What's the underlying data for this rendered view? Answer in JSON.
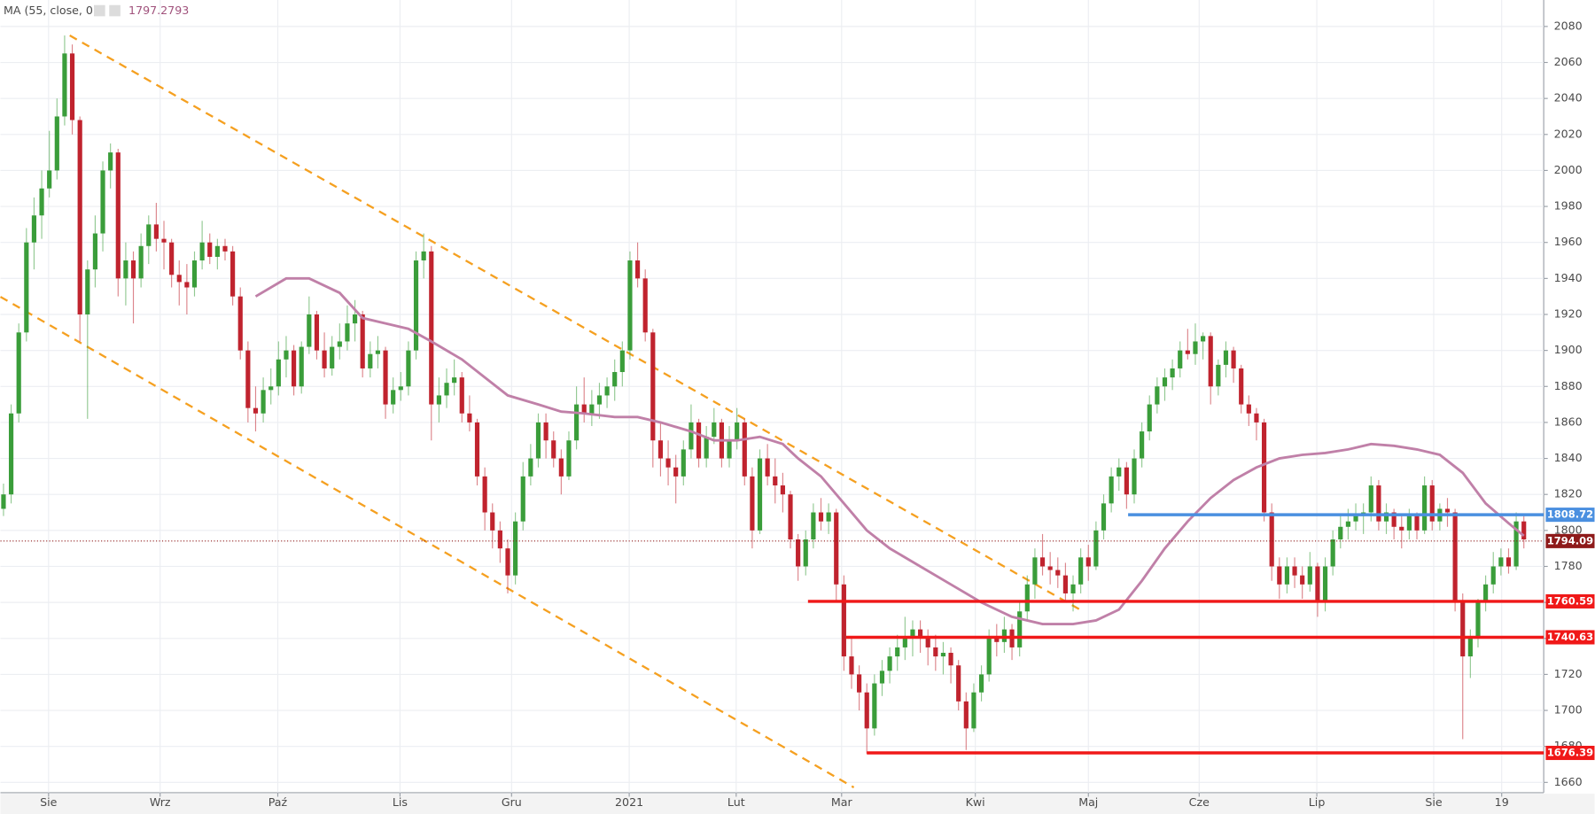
{
  "chart_data": {
    "type": "candlestick",
    "legend": {
      "name": "MA (55, close, 0)",
      "last_value": 1797.2793
    },
    "ylim": [
      1654.3,
      2094.7
    ],
    "yticks": [
      1660,
      1680,
      1700,
      1720,
      1740,
      1760,
      1780,
      1800,
      1820,
      1840,
      1860,
      1880,
      1900,
      1920,
      1940,
      1960,
      1980,
      2000,
      2020,
      2040,
      2060,
      2080
    ],
    "xlim": [
      -0.4,
      201.6
    ],
    "xticks": [
      {
        "value": 5.9,
        "label": "Sie"
      },
      {
        "value": 20.5,
        "label": "Wrz"
      },
      {
        "value": 35.9,
        "label": "Paź"
      },
      {
        "value": 51.9,
        "label": "Lis"
      },
      {
        "value": 66.5,
        "label": "Gru"
      },
      {
        "value": 81.9,
        "label": "2021"
      },
      {
        "value": 95.9,
        "label": "Lut"
      },
      {
        "value": 109.7,
        "label": "Mar"
      },
      {
        "value": 127.2,
        "label": "Kwi"
      },
      {
        "value": 142,
        "label": "Maj"
      },
      {
        "value": 156.5,
        "label": "Cze"
      },
      {
        "value": 171.9,
        "label": "Lip"
      },
      {
        "value": 187.2,
        "label": "Sie"
      },
      {
        "value": 196.1,
        "label": "19"
      }
    ],
    "grid": true,
    "up_color": "#3a9d3a",
    "down_color": "#c0232e",
    "candles": [
      [
        1812,
        1826,
        1808,
        1820
      ],
      [
        1820,
        1870,
        1815,
        1865
      ],
      [
        1865,
        1915,
        1860,
        1910
      ],
      [
        1910,
        1968,
        1905,
        1960
      ],
      [
        1960,
        1985,
        1945,
        1975
      ],
      [
        1975,
        2000,
        1962,
        1990
      ],
      [
        1990,
        2022,
        1985,
        2000
      ],
      [
        2000,
        2040,
        1995,
        2030
      ],
      [
        2030,
        2075,
        2025,
        2065
      ],
      [
        2065,
        2070,
        2020,
        2028
      ],
      [
        2028,
        2030,
        1905,
        1920
      ],
      [
        1920,
        1950,
        1862,
        1945
      ],
      [
        1945,
        1975,
        1935,
        1965
      ],
      [
        1965,
        2005,
        1955,
        2000
      ],
      [
        2000,
        2015,
        1990,
        2010
      ],
      [
        2010,
        2012,
        1930,
        1940
      ],
      [
        1940,
        1960,
        1925,
        1950
      ],
      [
        1950,
        1955,
        1915,
        1940
      ],
      [
        1940,
        1965,
        1935,
        1958
      ],
      [
        1958,
        1975,
        1948,
        1970
      ],
      [
        1970,
        1982,
        1955,
        1962
      ],
      [
        1962,
        1972,
        1945,
        1960
      ],
      [
        1960,
        1962,
        1935,
        1942
      ],
      [
        1942,
        1950,
        1925,
        1938
      ],
      [
        1938,
        1948,
        1920,
        1935
      ],
      [
        1935,
        1955,
        1930,
        1950
      ],
      [
        1950,
        1972,
        1945,
        1960
      ],
      [
        1960,
        1965,
        1948,
        1952
      ],
      [
        1952,
        1962,
        1945,
        1958
      ],
      [
        1958,
        1962,
        1950,
        1955
      ],
      [
        1955,
        1958,
        1925,
        1930
      ],
      [
        1930,
        1935,
        1895,
        1900
      ],
      [
        1900,
        1905,
        1860,
        1868
      ],
      [
        1868,
        1880,
        1855,
        1865
      ],
      [
        1865,
        1885,
        1860,
        1878
      ],
      [
        1878,
        1890,
        1870,
        1880
      ],
      [
        1880,
        1905,
        1875,
        1895
      ],
      [
        1895,
        1908,
        1885,
        1900
      ],
      [
        1900,
        1903,
        1875,
        1880
      ],
      [
        1880,
        1905,
        1876,
        1902
      ],
      [
        1902,
        1930,
        1898,
        1920
      ],
      [
        1920,
        1922,
        1895,
        1900
      ],
      [
        1900,
        1910,
        1885,
        1890
      ],
      [
        1890,
        1908,
        1886,
        1902
      ],
      [
        1902,
        1915,
        1895,
        1905
      ],
      [
        1905,
        1925,
        1900,
        1915
      ],
      [
        1915,
        1928,
        1905,
        1920
      ],
      [
        1920,
        1922,
        1885,
        1890
      ],
      [
        1890,
        1905,
        1885,
        1898
      ],
      [
        1898,
        1908,
        1890,
        1900
      ],
      [
        1900,
        1902,
        1862,
        1870
      ],
      [
        1870,
        1885,
        1865,
        1878
      ],
      [
        1878,
        1888,
        1872,
        1880
      ],
      [
        1880,
        1905,
        1875,
        1900
      ],
      [
        1900,
        1955,
        1895,
        1950
      ],
      [
        1950,
        1965,
        1940,
        1955
      ],
      [
        1955,
        1958,
        1850,
        1870
      ],
      [
        1870,
        1885,
        1860,
        1875
      ],
      [
        1875,
        1890,
        1868,
        1882
      ],
      [
        1882,
        1895,
        1875,
        1885
      ],
      [
        1885,
        1888,
        1860,
        1865
      ],
      [
        1865,
        1875,
        1855,
        1860
      ],
      [
        1860,
        1862,
        1825,
        1830
      ],
      [
        1830,
        1835,
        1800,
        1810
      ],
      [
        1810,
        1815,
        1790,
        1800
      ],
      [
        1800,
        1805,
        1782,
        1790
      ],
      [
        1790,
        1795,
        1765,
        1775
      ],
      [
        1775,
        1810,
        1770,
        1805
      ],
      [
        1805,
        1838,
        1800,
        1830
      ],
      [
        1830,
        1848,
        1825,
        1840
      ],
      [
        1840,
        1865,
        1835,
        1860
      ],
      [
        1860,
        1865,
        1840,
        1850
      ],
      [
        1850,
        1855,
        1835,
        1840
      ],
      [
        1840,
        1845,
        1820,
        1830
      ],
      [
        1830,
        1855,
        1828,
        1850
      ],
      [
        1850,
        1880,
        1845,
        1870
      ],
      [
        1870,
        1885,
        1860,
        1865
      ],
      [
        1865,
        1878,
        1858,
        1870
      ],
      [
        1870,
        1882,
        1862,
        1875
      ],
      [
        1875,
        1885,
        1868,
        1880
      ],
      [
        1880,
        1895,
        1872,
        1888
      ],
      [
        1888,
        1905,
        1880,
        1900
      ],
      [
        1900,
        1955,
        1895,
        1950
      ],
      [
        1950,
        1960,
        1935,
        1940
      ],
      [
        1940,
        1945,
        1905,
        1910
      ],
      [
        1910,
        1912,
        1835,
        1850
      ],
      [
        1850,
        1860,
        1830,
        1840
      ],
      [
        1840,
        1850,
        1825,
        1835
      ],
      [
        1835,
        1842,
        1815,
        1830
      ],
      [
        1830,
        1850,
        1825,
        1845
      ],
      [
        1845,
        1870,
        1840,
        1860
      ],
      [
        1860,
        1862,
        1835,
        1840
      ],
      [
        1840,
        1858,
        1835,
        1852
      ],
      [
        1852,
        1868,
        1848,
        1860
      ],
      [
        1860,
        1862,
        1835,
        1840
      ],
      [
        1840,
        1858,
        1835,
        1850
      ],
      [
        1850,
        1868,
        1845,
        1860
      ],
      [
        1860,
        1862,
        1825,
        1830
      ],
      [
        1830,
        1835,
        1790,
        1800
      ],
      [
        1800,
        1845,
        1798,
        1840
      ],
      [
        1840,
        1848,
        1825,
        1830
      ],
      [
        1830,
        1840,
        1815,
        1825
      ],
      [
        1825,
        1832,
        1810,
        1820
      ],
      [
        1820,
        1822,
        1790,
        1795
      ],
      [
        1795,
        1798,
        1772,
        1780
      ],
      [
        1780,
        1800,
        1775,
        1795
      ],
      [
        1795,
        1815,
        1790,
        1810
      ],
      [
        1810,
        1818,
        1800,
        1805
      ],
      [
        1805,
        1815,
        1798,
        1810
      ],
      [
        1810,
        1812,
        1760,
        1770
      ],
      [
        1770,
        1775,
        1722,
        1730
      ],
      [
        1730,
        1740,
        1712,
        1720
      ],
      [
        1720,
        1725,
        1700,
        1710
      ],
      [
        1710,
        1715,
        1676,
        1690
      ],
      [
        1690,
        1720,
        1686,
        1715
      ],
      [
        1715,
        1728,
        1708,
        1722
      ],
      [
        1722,
        1735,
        1715,
        1730
      ],
      [
        1730,
        1742,
        1722,
        1735
      ],
      [
        1735,
        1752,
        1728,
        1740
      ],
      [
        1740,
        1750,
        1730,
        1745
      ],
      [
        1745,
        1750,
        1732,
        1740
      ],
      [
        1740,
        1745,
        1725,
        1735
      ],
      [
        1735,
        1742,
        1722,
        1730
      ],
      [
        1730,
        1738,
        1720,
        1732
      ],
      [
        1732,
        1735,
        1715,
        1725
      ],
      [
        1725,
        1728,
        1700,
        1705
      ],
      [
        1705,
        1710,
        1678,
        1690
      ],
      [
        1690,
        1715,
        1688,
        1710
      ],
      [
        1710,
        1725,
        1705,
        1720
      ],
      [
        1720,
        1745,
        1716,
        1740
      ],
      [
        1740,
        1748,
        1730,
        1738
      ],
      [
        1738,
        1752,
        1732,
        1745
      ],
      [
        1745,
        1748,
        1728,
        1735
      ],
      [
        1735,
        1760,
        1730,
        1755
      ],
      [
        1755,
        1775,
        1750,
        1770
      ],
      [
        1770,
        1790,
        1762,
        1785
      ],
      [
        1785,
        1798,
        1775,
        1780
      ],
      [
        1780,
        1788,
        1770,
        1778
      ],
      [
        1778,
        1785,
        1768,
        1775
      ],
      [
        1775,
        1782,
        1760,
        1765
      ],
      [
        1765,
        1775,
        1755,
        1770
      ],
      [
        1770,
        1790,
        1765,
        1785
      ],
      [
        1785,
        1792,
        1772,
        1780
      ],
      [
        1780,
        1805,
        1778,
        1800
      ],
      [
        1800,
        1820,
        1795,
        1815
      ],
      [
        1815,
        1835,
        1810,
        1830
      ],
      [
        1830,
        1840,
        1822,
        1835
      ],
      [
        1835,
        1838,
        1812,
        1820
      ],
      [
        1820,
        1845,
        1815,
        1840
      ],
      [
        1840,
        1860,
        1835,
        1855
      ],
      [
        1855,
        1875,
        1850,
        1870
      ],
      [
        1870,
        1885,
        1865,
        1880
      ],
      [
        1880,
        1890,
        1872,
        1885
      ],
      [
        1885,
        1895,
        1878,
        1890
      ],
      [
        1890,
        1905,
        1885,
        1900
      ],
      [
        1900,
        1912,
        1895,
        1898
      ],
      [
        1898,
        1915,
        1892,
        1905
      ],
      [
        1905,
        1910,
        1895,
        1908
      ],
      [
        1908,
        1910,
        1870,
        1880
      ],
      [
        1880,
        1895,
        1875,
        1892
      ],
      [
        1892,
        1905,
        1885,
        1900
      ],
      [
        1900,
        1902,
        1882,
        1890
      ],
      [
        1890,
        1892,
        1865,
        1870
      ],
      [
        1870,
        1875,
        1858,
        1865
      ],
      [
        1865,
        1868,
        1850,
        1860
      ],
      [
        1860,
        1862,
        1805,
        1810
      ],
      [
        1810,
        1815,
        1772,
        1780
      ],
      [
        1780,
        1785,
        1762,
        1770
      ],
      [
        1770,
        1785,
        1765,
        1780
      ],
      [
        1780,
        1785,
        1768,
        1775
      ],
      [
        1775,
        1780,
        1762,
        1770
      ],
      [
        1770,
        1788,
        1766,
        1780
      ],
      [
        1780,
        1782,
        1752,
        1760
      ],
      [
        1760,
        1785,
        1755,
        1780
      ],
      [
        1780,
        1800,
        1775,
        1795
      ],
      [
        1795,
        1808,
        1790,
        1802
      ],
      [
        1802,
        1812,
        1795,
        1805
      ],
      [
        1805,
        1815,
        1800,
        1808
      ],
      [
        1808,
        1815,
        1798,
        1810
      ],
      [
        1810,
        1830,
        1805,
        1825
      ],
      [
        1825,
        1828,
        1800,
        1805
      ],
      [
        1805,
        1815,
        1798,
        1810
      ],
      [
        1810,
        1812,
        1795,
        1802
      ],
      [
        1802,
        1808,
        1790,
        1800
      ],
      [
        1800,
        1812,
        1795,
        1808
      ],
      [
        1808,
        1810,
        1795,
        1800
      ],
      [
        1800,
        1830,
        1798,
        1825
      ],
      [
        1825,
        1828,
        1800,
        1805
      ],
      [
        1805,
        1815,
        1800,
        1812
      ],
      [
        1812,
        1818,
        1802,
        1810
      ],
      [
        1810,
        1812,
        1755,
        1760
      ],
      [
        1760,
        1765,
        1684,
        1730
      ],
      [
        1730,
        1745,
        1718,
        1740
      ],
      [
        1740,
        1762,
        1735,
        1760
      ],
      [
        1760,
        1775,
        1755,
        1770
      ],
      [
        1770,
        1788,
        1765,
        1780
      ],
      [
        1780,
        1790,
        1775,
        1785
      ],
      [
        1785,
        1790,
        1776,
        1780
      ],
      [
        1780,
        1810,
        1778,
        1805
      ],
      [
        1805,
        1808,
        1790,
        1795
      ]
    ],
    "ma": {
      "color": "#c080a8",
      "x": [
        33,
        37,
        40,
        44,
        47,
        50,
        53,
        56,
        60,
        63,
        66,
        70,
        73,
        76,
        80,
        83,
        86,
        90,
        93,
        96,
        99,
        102,
        104,
        107,
        110,
        113,
        116,
        120,
        124,
        128,
        132,
        136,
        140,
        143,
        146,
        149,
        152,
        155,
        158,
        161,
        164,
        167,
        170,
        173,
        176,
        179,
        182,
        185,
        188,
        191,
        194,
        197,
        199
      ],
      "values": [
        1930,
        1940,
        1940,
        1932,
        1918,
        1915,
        1912,
        1905,
        1895,
        1885,
        1875,
        1870,
        1866,
        1865,
        1863,
        1863,
        1860,
        1855,
        1850,
        1850,
        1852,
        1848,
        1840,
        1830,
        1815,
        1800,
        1790,
        1780,
        1770,
        1760,
        1752,
        1748,
        1748,
        1750,
        1756,
        1772,
        1790,
        1805,
        1818,
        1828,
        1835,
        1840,
        1842,
        1843,
        1845,
        1848,
        1847,
        1845,
        1842,
        1832,
        1815,
        1804,
        1797
      ]
    },
    "trendlines": {
      "color": "#f5a020",
      "lines": [
        {
          "x": [
            8.67,
            140.9
          ],
          "values": [
            2075,
            1756
          ]
        },
        {
          "x": [
            -0.4,
            111.3
          ],
          "values": [
            1929.8,
            1657.2
          ]
        }
      ]
    },
    "levels": [
      {
        "value": 1808.72,
        "start": 147.2,
        "color": "#4a8fe0"
      },
      {
        "value": 1760.59,
        "start": 105.3,
        "color": "#f01818"
      },
      {
        "value": 1740.63,
        "start": 110.3,
        "color": "#f01818"
      },
      {
        "value": 1676.39,
        "start": 113,
        "color": "#f01818"
      }
    ],
    "last_price": {
      "value": 1794.09,
      "color": "#8e1a1a"
    }
  }
}
